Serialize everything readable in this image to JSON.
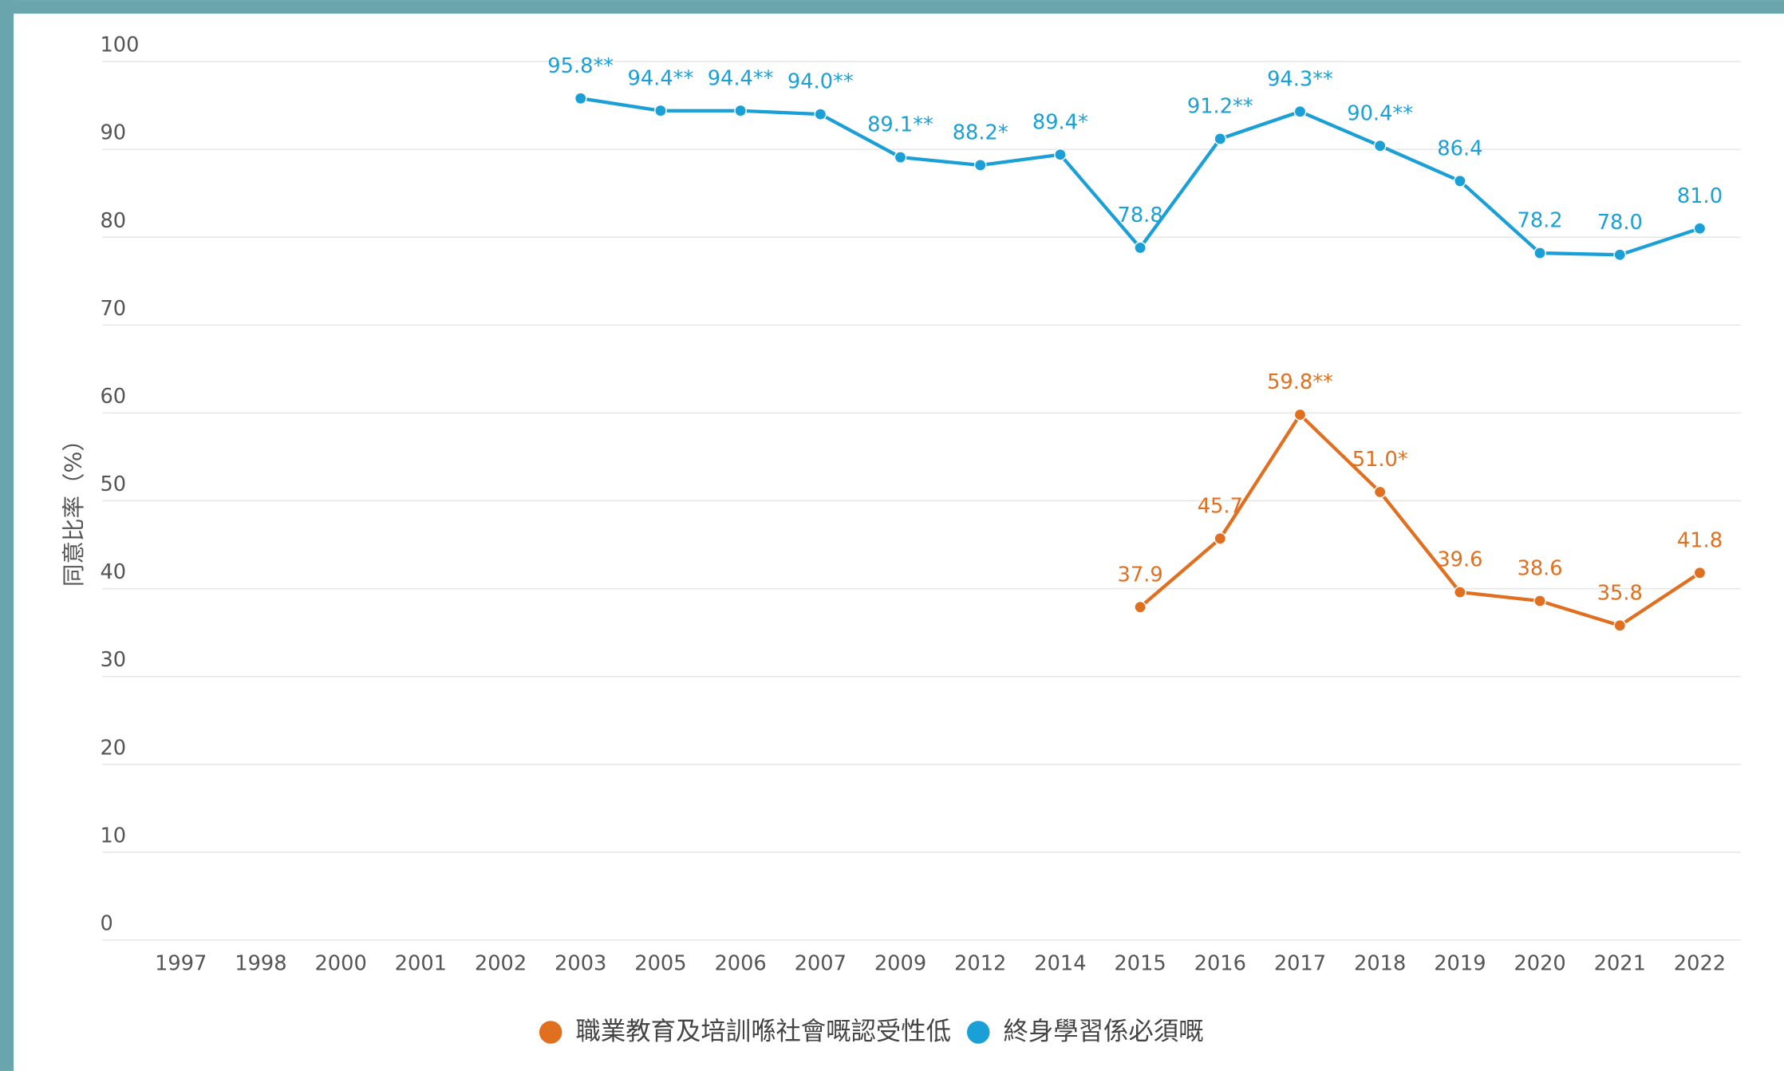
{
  "chart_data": {
    "type": "line",
    "y_label": "同意比率（%）",
    "categories": [
      "1997",
      "1998",
      "2000",
      "2001",
      "2002",
      "2003",
      "2005",
      "2006",
      "2007",
      "2009",
      "2012",
      "2014",
      "2015",
      "2016",
      "2017",
      "2018",
      "2019",
      "2020",
      "2021",
      "2022"
    ],
    "series": [
      {
        "name": "職業教育及培訓喺社會嘅認受性低",
        "color": "#e0701f",
        "values": [
          null,
          null,
          null,
          null,
          null,
          null,
          null,
          null,
          null,
          null,
          null,
          null,
          37.9,
          45.7,
          59.8,
          51.0,
          39.6,
          38.6,
          35.8,
          41.8
        ],
        "value_labels": [
          null,
          null,
          null,
          null,
          null,
          null,
          null,
          null,
          null,
          null,
          null,
          null,
          "37.9",
          "45.7",
          "59.8**",
          "51.0*",
          "39.6",
          "38.6",
          "35.8",
          "41.8"
        ]
      },
      {
        "name": "終身學習係必須嘅",
        "color": "#1a9fd6",
        "values": [
          null,
          null,
          null,
          null,
          null,
          95.8,
          94.4,
          94.4,
          94.0,
          89.1,
          88.2,
          89.4,
          78.8,
          91.2,
          94.3,
          90.4,
          86.4,
          78.2,
          78.0,
          81.0
        ],
        "value_labels": [
          null,
          null,
          null,
          null,
          null,
          "95.8**",
          "94.4**",
          "94.4**",
          "94.0**",
          "89.1**",
          "88.2*",
          "89.4*",
          "78.8",
          "91.2**",
          "94.3**",
          "90.4**",
          "86.4",
          "78.2",
          "78.0",
          "81.0"
        ]
      }
    ],
    "ylim": [
      0,
      100
    ],
    "yticks": [
      0,
      10,
      20,
      30,
      40,
      50,
      60,
      70,
      80,
      90,
      100
    ],
    "grid": true,
    "legend": "bottom"
  }
}
